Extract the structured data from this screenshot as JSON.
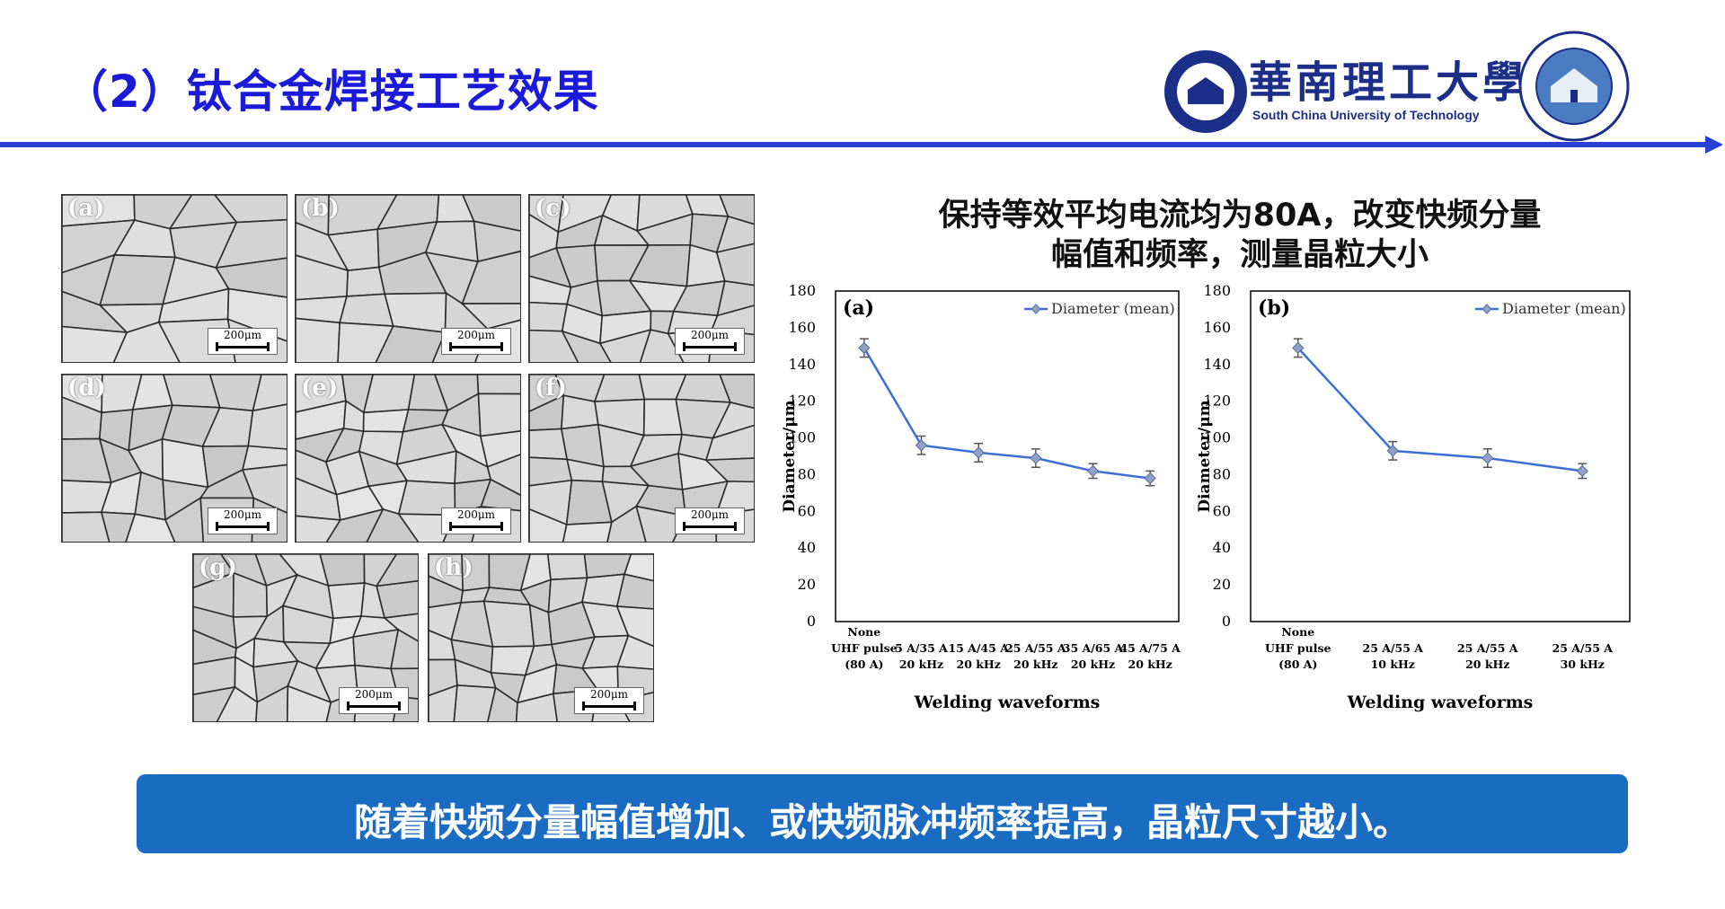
{
  "header": {
    "title": "（2）钛合金焊接工艺效果",
    "university_cn": "華南理工大學",
    "university_en": "South China University of Technology"
  },
  "micrographs": [
    {
      "label": "(a)",
      "scale": "200μm"
    },
    {
      "label": "(b)",
      "scale": "200μm"
    },
    {
      "label": "(c)",
      "scale": "200μm"
    },
    {
      "label": "(d)",
      "scale": "200μm"
    },
    {
      "label": "(e)",
      "scale": "200μm"
    },
    {
      "label": "(f)",
      "scale": "200μm"
    },
    {
      "label": "(g)",
      "scale": "200μm"
    },
    {
      "label": "(h)",
      "scale": "200μm"
    }
  ],
  "chart_heading": {
    "line1": "保持等效平均电流均为80A，改变快频分量",
    "line2": "幅值和频率，测量晶粒大小"
  },
  "chart_data": [
    {
      "type": "line",
      "panel_label": "(a)",
      "categories": [
        [
          "None",
          "UHF pulse",
          "(80 A)"
        ],
        [
          "5 A/35 A",
          "20 kHz"
        ],
        [
          "15 A/45 A",
          "20 kHz"
        ],
        [
          "25 A/55 A",
          "20 kHz"
        ],
        [
          "35 A/65 A",
          "20 kHz"
        ],
        [
          "45 A/75 A",
          "20 kHz"
        ]
      ],
      "series": [
        {
          "name": "Diameter (mean)",
          "values": [
            149,
            96,
            92,
            89,
            82,
            78
          ],
          "errors": [
            5,
            5,
            5,
            5,
            4,
            4
          ]
        }
      ],
      "xlabel": "Welding waveforms",
      "ylabel": "Diameter/μm",
      "ylim": [
        0,
        180
      ],
      "yticks": [
        0,
        20,
        40,
        60,
        80,
        100,
        120,
        140,
        160,
        180
      ],
      "legend": "top-right",
      "grid": false,
      "color": "#3c6fd6"
    },
    {
      "type": "line",
      "panel_label": "(b)",
      "categories": [
        [
          "None",
          "UHF pulse",
          "(80 A)"
        ],
        [
          "25 A/55 A",
          "10 kHz"
        ],
        [
          "25 A/55 A",
          "20 kHz"
        ],
        [
          "25 A/55 A",
          "30 kHz"
        ]
      ],
      "series": [
        {
          "name": "Diameter (mean)",
          "values": [
            149,
            93,
            89,
            82
          ],
          "errors": [
            5,
            5,
            5,
            4
          ]
        }
      ],
      "xlabel": "Welding waveforms",
      "ylabel": "Diameter/μm",
      "ylim": [
        0,
        180
      ],
      "yticks": [
        0,
        20,
        40,
        60,
        80,
        100,
        120,
        140,
        160,
        180
      ],
      "legend": "top-right",
      "grid": false,
      "color": "#3c6fd6"
    }
  ],
  "banner": {
    "text": "随着快频分量幅值增加、或快频脉冲频率提高，晶粒尺寸越小。",
    "color": "#1a6bc2"
  }
}
